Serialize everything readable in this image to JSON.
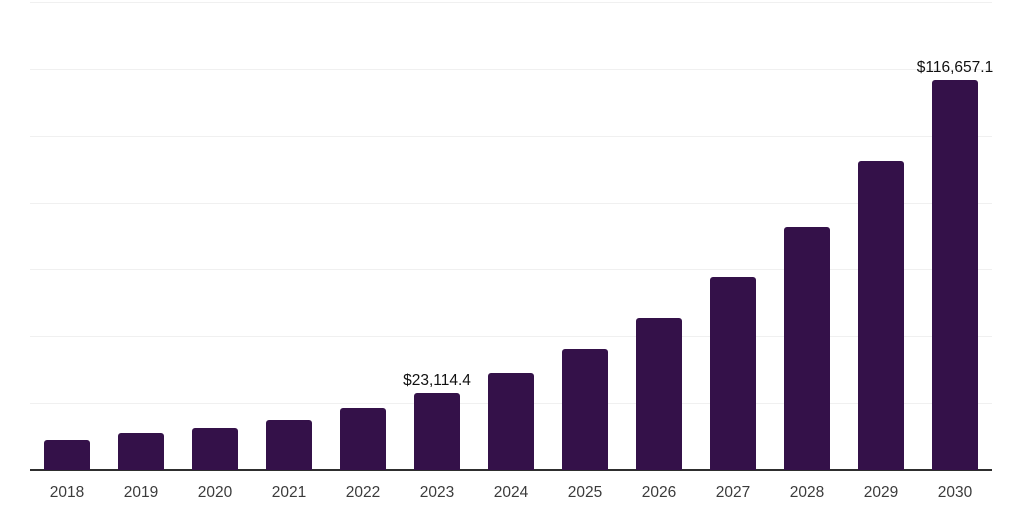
{
  "page": {
    "background": "#ffffff"
  },
  "chart_data": {
    "type": "bar",
    "title": "",
    "subtitle": "",
    "xlabel": "",
    "ylabel": "",
    "legend": "none",
    "grid": "horizontal",
    "categories": [
      "2018",
      "2019",
      "2020",
      "2021",
      "2022",
      "2023",
      "2024",
      "2025",
      "2026",
      "2027",
      "2028",
      "2029",
      "2030"
    ],
    "values": [
      9000,
      11070,
      12580,
      14970,
      18560,
      23114.4,
      28870,
      36200,
      45480,
      57730,
      72700,
      92420,
      116657.1
    ],
    "value_labels": [
      "",
      "",
      "",
      "",
      "",
      "$23,114.4",
      "",
      "",
      "",
      "",
      "",
      "",
      "$116,657.1"
    ],
    "ylim": [
      0,
      140000
    ],
    "gridline_interval": 20000,
    "y_axis_labels_visible": false,
    "styles": {
      "bar_color": "#341149",
      "axis_line_color": "#2e2e2e",
      "gridline_color": "#f0f0f0",
      "tick_label_color": "#3b3b3b",
      "value_label_color": "#111111"
    }
  }
}
